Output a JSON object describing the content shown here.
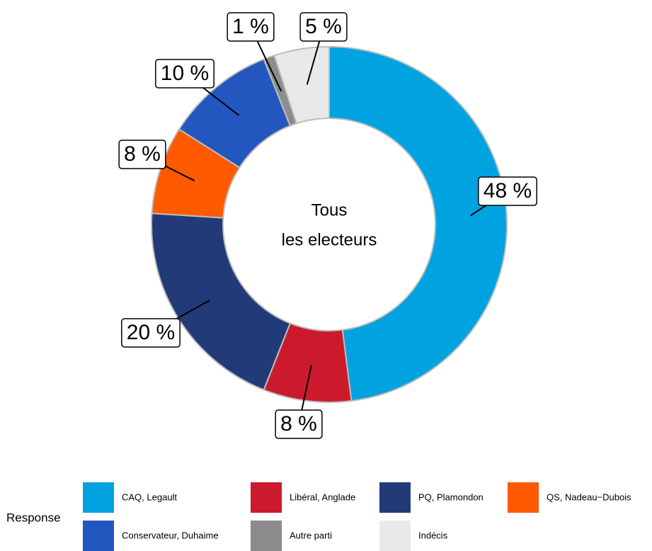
{
  "chart_data": {
    "type": "donut",
    "center_label": [
      "Tous",
      "les electeurs"
    ],
    "legend_title": "Response",
    "categories": [
      "CAQ, Legault",
      "Libéral, Anglade",
      "PQ, Plamondon",
      "QS, Nadeau−Dubois",
      "Conservateur, Duhaime",
      "Autre parti",
      "Indécis"
    ],
    "values": [
      48,
      8,
      20,
      8,
      10,
      1,
      5
    ],
    "value_labels": [
      "48 %",
      "8 %",
      "20 %",
      "8 %",
      "10 %",
      "1 %",
      "5 %"
    ],
    "colors": [
      "#00a3e0",
      "#cc1a2d",
      "#233a78",
      "#ff5a00",
      "#2456c0",
      "#8c8c8c",
      "#e8e9e9"
    ]
  }
}
